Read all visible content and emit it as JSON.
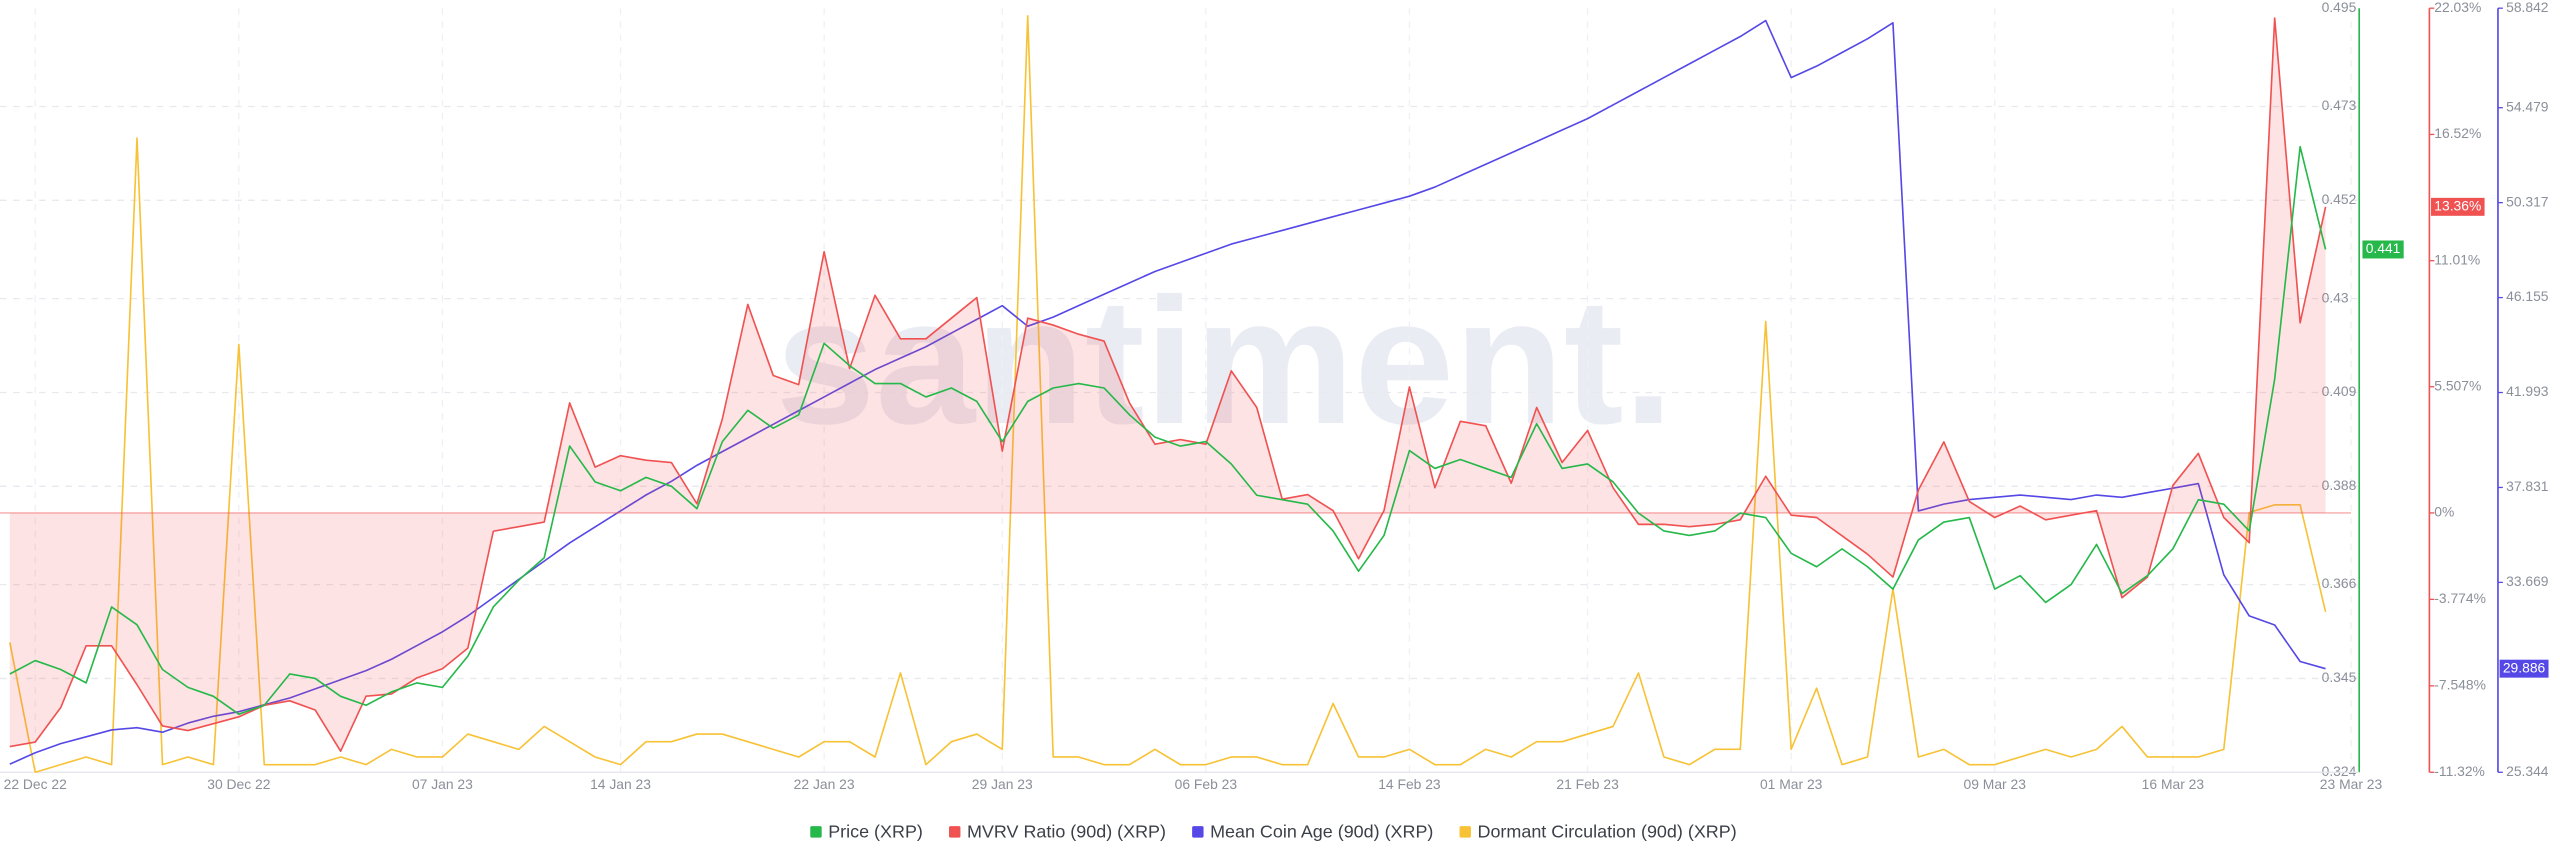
{
  "chart_data": {
    "type": "line",
    "watermark": "santiment.",
    "categories": [
      null,
      "22 Dec 22",
      null,
      null,
      null,
      null,
      null,
      null,
      null,
      "30 Dec 22",
      null,
      null,
      null,
      null,
      null,
      null,
      null,
      "07 Jan 23",
      null,
      null,
      null,
      null,
      null,
      null,
      "14 Jan 23",
      null,
      null,
      null,
      null,
      null,
      null,
      null,
      "22 Jan 23",
      null,
      null,
      null,
      null,
      null,
      null,
      "29 Jan 23",
      null,
      null,
      null,
      null,
      null,
      null,
      null,
      "06 Feb 23",
      null,
      null,
      null,
      null,
      null,
      null,
      null,
      "14 Feb 23",
      null,
      null,
      null,
      null,
      null,
      null,
      "21 Feb 23",
      null,
      null,
      null,
      null,
      null,
      null,
      null,
      "01 Mar 23",
      null,
      null,
      null,
      null,
      null,
      null,
      null,
      "09 Mar 23",
      null,
      null,
      null,
      null,
      null,
      null,
      "16 Mar 23",
      null,
      null,
      null,
      null,
      null,
      null,
      "23 Mar 23"
    ],
    "ylim": [
      0.324,
      0.495
    ],
    "yticks": [
      0.495,
      0.473,
      0.452,
      0.43,
      0.409,
      0.388,
      0.366,
      0.345,
      0.324
    ],
    "y2lim": [
      -11.32,
      22.03
    ],
    "y2ticks": [
      {
        "value": 22.03,
        "label": "22.03%"
      },
      {
        "value": 16.52,
        "label": "16.52%"
      },
      {
        "value": 11.01,
        "label": "11.01%"
      },
      {
        "value": 5.507,
        "label": "5.507%"
      },
      {
        "value": 0,
        "label": "0%"
      },
      {
        "value": -3.774,
        "label": "-3.774%"
      },
      {
        "value": -7.548,
        "label": "-7.548%"
      },
      {
        "value": -11.32,
        "label": "-11.32%"
      }
    ],
    "y3lim": [
      25.344,
      58.842
    ],
    "y3ticks": [
      58.842,
      54.479,
      50.317,
      46.155,
      41.993,
      37.831,
      33.669,
      25.344
    ],
    "y4lim": [
      0,
      100
    ],
    "grid": true,
    "series": [
      {
        "name": "Price (XRP)",
        "color": "#26b84a",
        "axis": "y",
        "last_label": "0.441",
        "values": [
          0.346,
          0.349,
          0.347,
          0.344,
          0.361,
          0.357,
          0.347,
          0.343,
          0.341,
          0.337,
          0.339,
          0.346,
          0.345,
          0.341,
          0.339,
          0.342,
          0.344,
          0.343,
          0.35,
          0.361,
          0.367,
          0.372,
          0.397,
          0.389,
          0.387,
          0.39,
          0.388,
          0.383,
          0.398,
          0.405,
          0.401,
          0.404,
          0.42,
          0.415,
          0.411,
          0.411,
          0.408,
          0.41,
          0.407,
          0.398,
          0.407,
          0.41,
          0.411,
          0.41,
          0.404,
          0.399,
          0.397,
          0.398,
          0.393,
          0.386,
          0.385,
          0.384,
          0.378,
          0.369,
          0.377,
          0.396,
          0.392,
          0.394,
          0.392,
          0.39,
          0.402,
          0.392,
          0.393,
          0.389,
          0.382,
          0.378,
          0.377,
          0.378,
          0.382,
          0.381,
          0.373,
          0.37,
          0.374,
          0.37,
          0.365,
          0.376,
          0.38,
          0.381,
          0.365,
          0.368,
          0.362,
          0.366,
          0.375,
          0.364,
          0.368,
          0.374,
          0.385,
          0.384,
          0.378,
          0.412,
          0.464,
          0.441,
          null
        ]
      },
      {
        "name": "MVRV Ratio (90d) (XRP)",
        "color": "#f05252",
        "axis": "y2",
        "last_label": "13.36%",
        "fill": true,
        "values": [
          -10.2,
          -10.0,
          -8.5,
          -5.8,
          -5.8,
          -7.5,
          -9.3,
          -9.5,
          -9.2,
          -8.9,
          -8.4,
          -8.2,
          -8.6,
          -10.4,
          -8.0,
          -7.9,
          -7.2,
          -6.8,
          -5.9,
          -0.8,
          -0.6,
          -0.4,
          4.8,
          2.0,
          2.5,
          2.3,
          2.2,
          0.4,
          4.1,
          9.1,
          6.0,
          5.6,
          11.4,
          6.3,
          9.5,
          7.6,
          7.6,
          8.5,
          9.4,
          2.7,
          8.5,
          8.2,
          7.8,
          7.5,
          4.8,
          3.0,
          3.2,
          3.0,
          6.2,
          4.6,
          0.6,
          0.8,
          0.1,
          -2.0,
          0.1,
          5.5,
          1.1,
          4.0,
          3.8,
          1.3,
          4.6,
          2.2,
          3.6,
          1.1,
          -0.5,
          -0.5,
          -0.6,
          -0.5,
          -0.3,
          1.6,
          -0.1,
          -0.2,
          -1.0,
          -1.8,
          -2.8,
          1.0,
          3.1,
          0.5,
          -0.2,
          0.3,
          -0.3,
          -0.1,
          0.1,
          -3.7,
          -2.8,
          1.2,
          2.6,
          -0.2,
          -1.3,
          21.6,
          8.3,
          13.36,
          null
        ]
      },
      {
        "name": "Mean Coin Age (90d) (XRP)",
        "color": "#5548e6",
        "axis": "y3",
        "last_label": "29.886",
        "values": [
          25.7,
          26.2,
          26.6,
          26.9,
          27.2,
          27.3,
          27.1,
          27.5,
          27.8,
          28.0,
          28.3,
          28.6,
          29.0,
          29.4,
          29.8,
          30.3,
          30.9,
          31.5,
          32.2,
          33.0,
          33.8,
          34.6,
          35.4,
          36.1,
          36.8,
          37.5,
          38.1,
          38.8,
          39.4,
          40.0,
          40.6,
          41.2,
          41.8,
          42.4,
          43.0,
          43.5,
          44.0,
          44.6,
          45.2,
          45.8,
          44.9,
          45.3,
          45.8,
          46.3,
          46.8,
          47.3,
          47.7,
          48.1,
          48.5,
          48.8,
          49.1,
          49.4,
          49.7,
          50.0,
          50.3,
          50.6,
          51.0,
          51.5,
          52.0,
          52.5,
          53.0,
          53.5,
          54.0,
          54.6,
          55.2,
          55.8,
          56.4,
          57.0,
          57.6,
          58.3,
          55.8,
          56.3,
          56.9,
          57.5,
          58.2,
          36.8,
          37.1,
          37.3,
          37.4,
          37.5,
          37.4,
          37.3,
          37.5,
          37.4,
          37.6,
          37.8,
          38.0,
          34.0,
          32.2,
          31.8,
          30.2,
          29.886,
          null
        ]
      },
      {
        "name": "Dormant Circulation (90d) (XRP)",
        "color": "#f7c236",
        "axis": "y4",
        "values": [
          17,
          0,
          1,
          2,
          1,
          83,
          1,
          2,
          1,
          56,
          1,
          1,
          1,
          2,
          1,
          3,
          2,
          2,
          5,
          4,
          3,
          6,
          4,
          2,
          1,
          4,
          4,
          5,
          5,
          4,
          3,
          2,
          4,
          4,
          2,
          13,
          1,
          4,
          5,
          3,
          99,
          2,
          2,
          1,
          1,
          3,
          1,
          1,
          2,
          2,
          1,
          1,
          9,
          2,
          2,
          3,
          1,
          1,
          3,
          2,
          4,
          4,
          5,
          6,
          13,
          2,
          1,
          3,
          3,
          59,
          3,
          11,
          1,
          2,
          24,
          2,
          3,
          1,
          1,
          2,
          3,
          2,
          3,
          6,
          2,
          2,
          2,
          3,
          34,
          35,
          35,
          21,
          null
        ]
      }
    ]
  }
}
